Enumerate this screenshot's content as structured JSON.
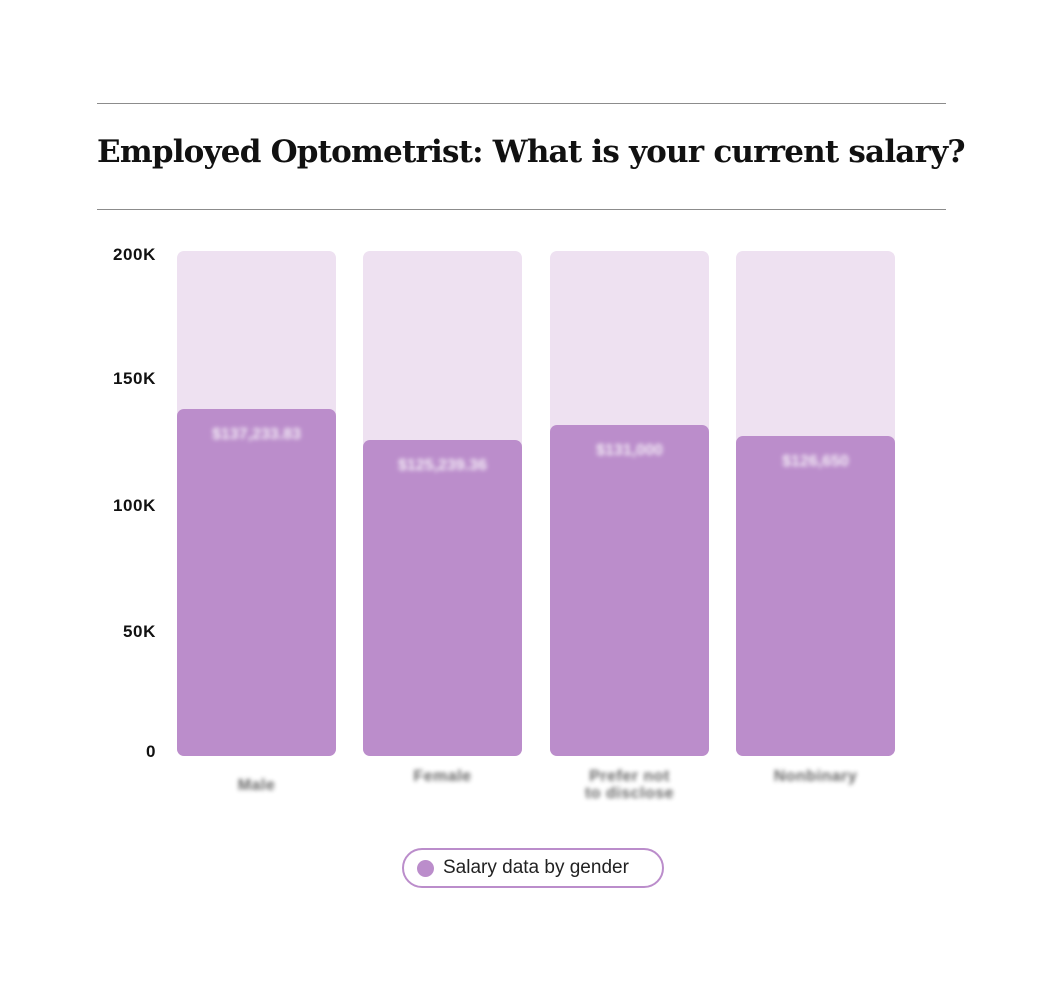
{
  "chart_data": {
    "type": "bar",
    "title": "Employed Optometrist: What is your current salary?",
    "categories": [
      "Male",
      "Female",
      "Prefer not\nto disclose",
      "Nonbinary"
    ],
    "series": [
      {
        "name": "Salary data by gender",
        "values": [
          137233.83,
          125239.36,
          131000,
          126650
        ],
        "data_labels": [
          "$137,233.83",
          "$125,239.36",
          "$131,000",
          "$126,650"
        ]
      }
    ],
    "ylim": [
      0,
      200000
    ],
    "yticks": [
      0,
      50000,
      100000,
      150000,
      200000
    ],
    "ytick_labels": [
      "0",
      "50K",
      "100K",
      "150K",
      "200K"
    ],
    "xlabel": "",
    "ylabel": "",
    "grid": false,
    "legend": "bottom-center",
    "colors": {
      "bar": "#bb8dcb",
      "track": "#eee1f1",
      "rule": "#8c8c8c",
      "legend_border": "#bb8dcb"
    }
  }
}
